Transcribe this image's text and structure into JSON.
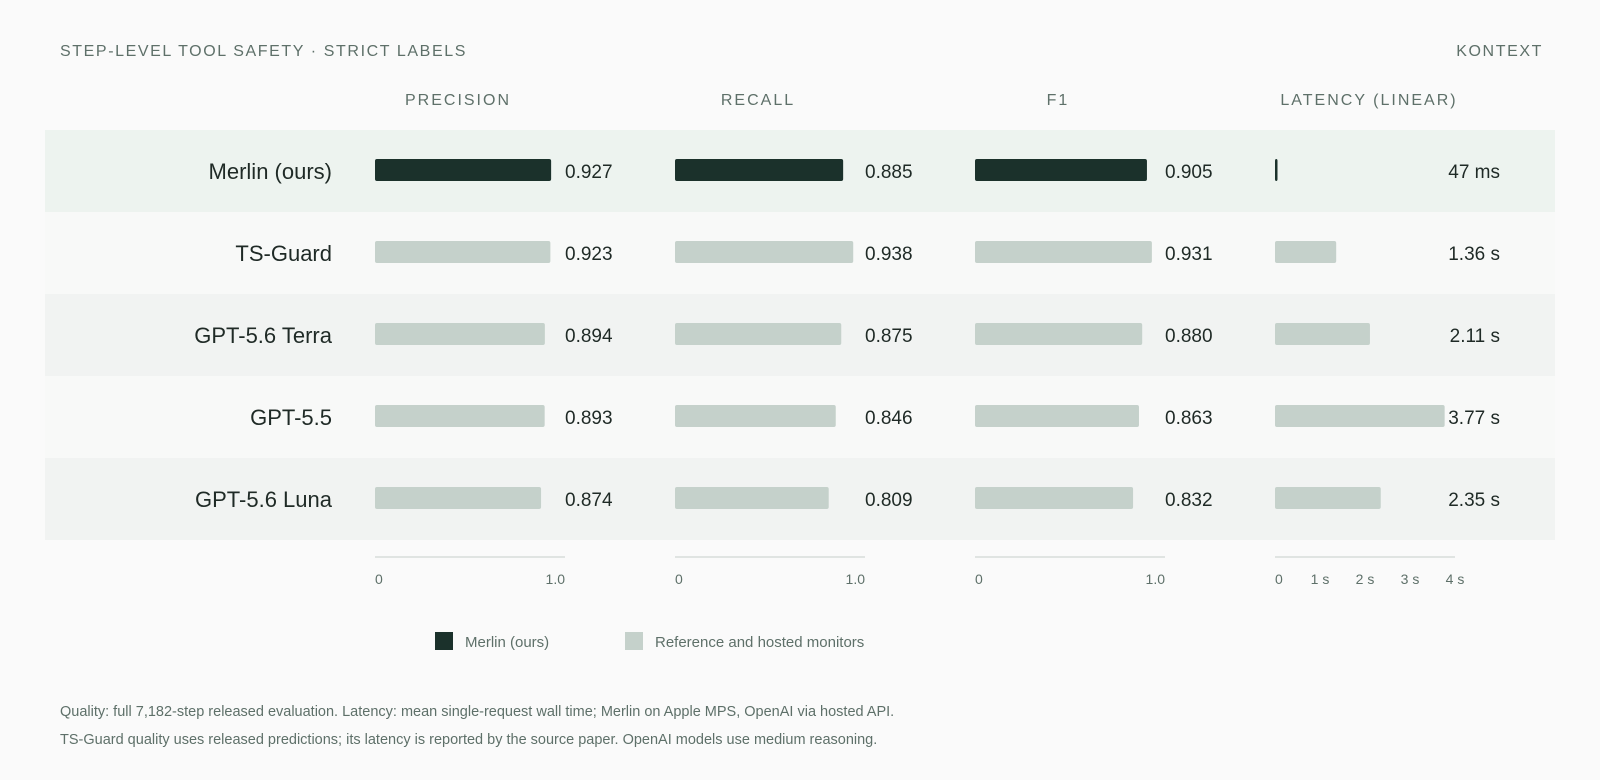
{
  "header": {
    "title": "STEP-LEVEL TOOL SAFETY · STRICT LABELS",
    "brand": "KONTEXT"
  },
  "colors": {
    "highlight": "#1b312b",
    "reference": "#c5d1cb",
    "row_highlight": "#edf3ef",
    "row_even": "#f1f3f2",
    "row_odd": "#f8f9f8",
    "muted": "#5e7069",
    "text": "#1f2a26",
    "axis": "#d7dcd9"
  },
  "chart_data": {
    "type": "bar",
    "orientation": "horizontal",
    "categories": [
      "Merlin (ours)",
      "TS-Guard",
      "GPT-5.6 Terra",
      "GPT-5.5",
      "GPT-5.6 Luna"
    ],
    "highlight_index": 0,
    "panels": [
      {
        "key": "precision",
        "title": "PRECISION",
        "values": [
          0.927,
          0.923,
          0.894,
          0.893,
          0.874
        ],
        "labels": [
          "0.927",
          "0.923",
          "0.894",
          "0.893",
          "0.874"
        ],
        "xlim": [
          0,
          1.0
        ],
        "ticks": [
          0,
          1.0
        ],
        "tick_labels": [
          "0",
          "1.0"
        ]
      },
      {
        "key": "recall",
        "title": "RECALL",
        "values": [
          0.885,
          0.938,
          0.875,
          0.846,
          0.809
        ],
        "labels": [
          "0.885",
          "0.938",
          "0.875",
          "0.846",
          "0.809"
        ],
        "xlim": [
          0,
          1.0
        ],
        "ticks": [
          0,
          1.0
        ],
        "tick_labels": [
          "0",
          "1.0"
        ]
      },
      {
        "key": "f1",
        "title": "F1",
        "values": [
          0.905,
          0.931,
          0.88,
          0.863,
          0.832
        ],
        "labels": [
          "0.905",
          "0.931",
          "0.880",
          "0.863",
          "0.832"
        ],
        "xlim": [
          0,
          1.0
        ],
        "ticks": [
          0,
          1.0
        ],
        "tick_labels": [
          "0",
          "1.0"
        ]
      },
      {
        "key": "latency",
        "title": "LATENCY (LINEAR)",
        "values": [
          0.047,
          1.36,
          2.11,
          3.77,
          2.35
        ],
        "labels": [
          "47 ms",
          "1.36 s",
          "2.11 s",
          "3.77 s",
          "2.35 s"
        ],
        "unit": "s",
        "xlim": [
          0,
          4
        ],
        "ticks": [
          0,
          1,
          2,
          3,
          4
        ],
        "tick_labels": [
          "0",
          "1 s",
          "2 s",
          "3 s",
          "4 s"
        ]
      }
    ],
    "legend": [
      {
        "label": "Merlin (ours)",
        "color": "#1b312b"
      },
      {
        "label": "Reference and hosted monitors",
        "color": "#c5d1cb"
      }
    ],
    "grid": false
  },
  "footnotes": [
    "Quality: full 7,182-step released evaluation. Latency: mean single-request wall time; Merlin on Apple MPS, OpenAI via hosted API.",
    "TS-Guard quality uses released predictions; its latency is reported by the source paper. OpenAI models use medium reasoning."
  ]
}
